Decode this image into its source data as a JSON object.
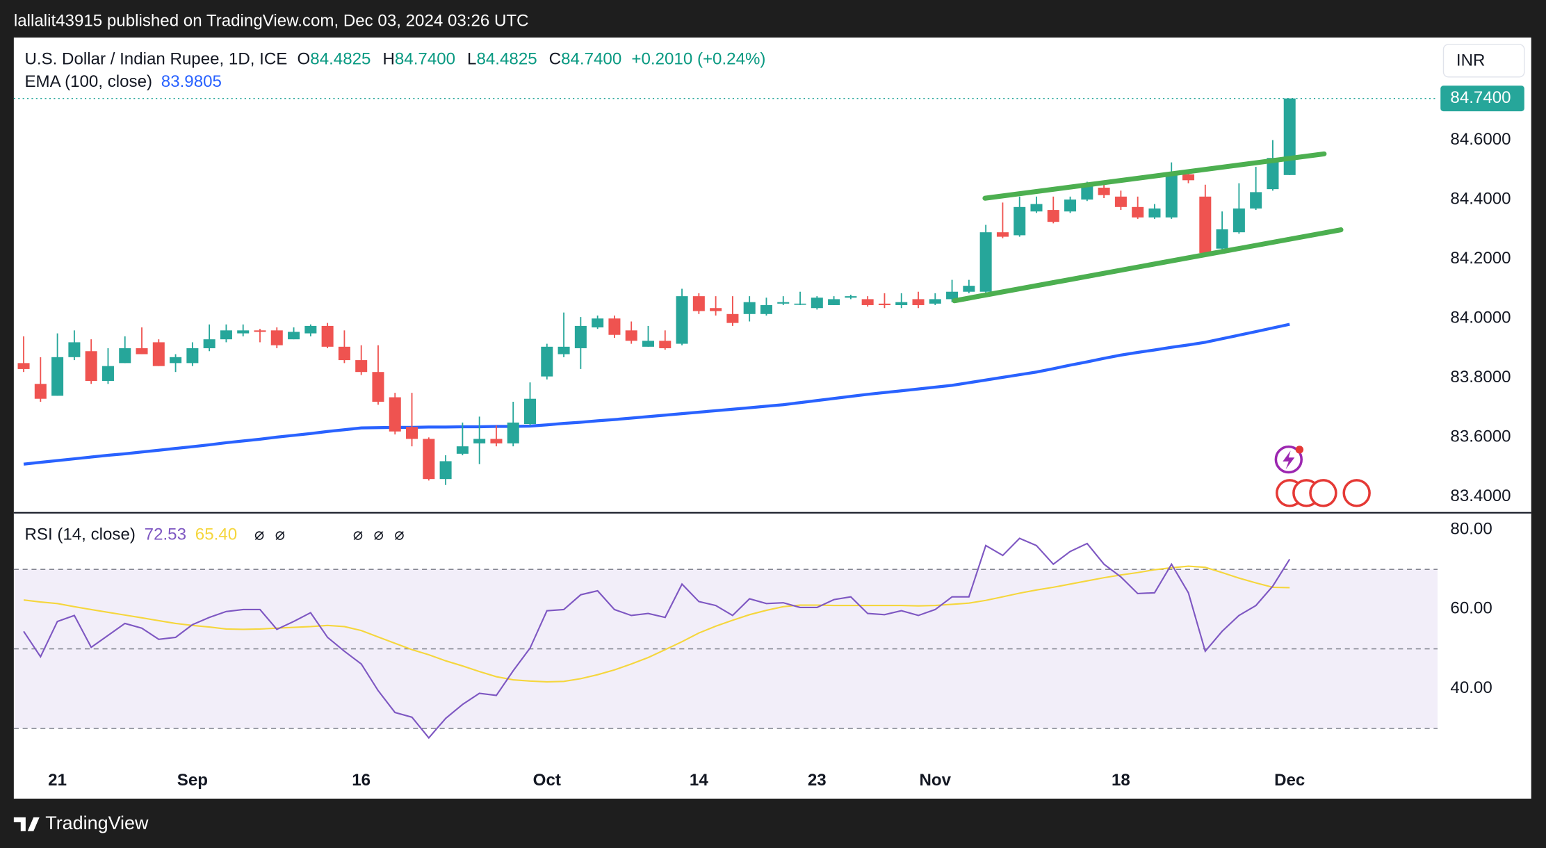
{
  "header": {
    "publisher": "lallalit43915 published on TradingView.com, Dec 03, 2024 03:26 UTC"
  },
  "chart_data": [
    {
      "type": "candlestick",
      "title": "U.S. Dollar / Indian Rupee, 1D, ICE",
      "legend": [
        {
          "key": "O",
          "text": "84.4825"
        },
        {
          "key": "H",
          "text": "84.7400"
        },
        {
          "key": "L",
          "text": "84.4825"
        },
        {
          "key": "C",
          "text": "84.7400"
        }
      ],
      "change": "+0.2010 (+0.24%)",
      "currency": "INR",
      "last_price_label": "84.7400",
      "up_color": "#26a69a",
      "down_color": "#ef5350",
      "categories": [
        null,
        null,
        "21",
        null,
        null,
        null,
        null,
        null,
        null,
        null,
        "Sep",
        null,
        null,
        null,
        null,
        null,
        null,
        null,
        null,
        null,
        "16",
        null,
        null,
        null,
        null,
        null,
        null,
        null,
        null,
        null,
        null,
        "Oct",
        null,
        null,
        null,
        null,
        null,
        null,
        null,
        null,
        "14",
        null,
        null,
        null,
        null,
        null,
        null,
        "23",
        null,
        null,
        null,
        null,
        null,
        null,
        "Nov",
        null,
        null,
        null,
        null,
        null,
        null,
        null,
        null,
        null,
        null,
        "18",
        null,
        null,
        null,
        null,
        null,
        null,
        null,
        null,
        null,
        "Dec"
      ],
      "open": [
        83.85,
        83.78,
        83.74,
        83.87,
        83.89,
        83.79,
        83.85,
        83.9,
        83.92,
        83.85,
        83.85,
        83.9,
        83.93,
        83.95,
        83.96,
        83.96,
        83.93,
        83.95,
        83.975,
        83.905,
        83.86,
        83.82,
        83.735,
        83.635,
        83.595,
        83.46,
        83.545,
        83.58,
        83.595,
        83.58,
        83.645,
        83.805,
        83.88,
        83.9,
        83.97,
        84.0,
        83.96,
        83.905,
        83.925,
        83.915,
        84.075,
        84.035,
        84.015,
        84.015,
        84.015,
        84.05,
        84.05,
        84.035,
        84.045,
        84.07,
        84.065,
        84.05,
        84.045,
        84.065,
        84.05,
        84.065,
        84.09,
        84.09,
        84.29,
        84.28,
        84.36,
        84.365,
        84.36,
        84.4,
        84.44,
        84.41,
        84.375,
        84.34,
        84.34,
        84.485,
        84.41,
        84.235,
        84.29,
        84.37,
        84.435,
        84.4825
      ],
      "high": [
        83.94,
        83.87,
        83.95,
        83.96,
        83.93,
        83.9,
        83.94,
        83.97,
        83.93,
        83.88,
        83.92,
        83.98,
        83.98,
        83.98,
        83.965,
        83.97,
        83.97,
        83.98,
        83.985,
        83.96,
        83.91,
        83.91,
        83.75,
        83.75,
        83.6,
        83.54,
        83.65,
        83.67,
        83.64,
        83.72,
        83.785,
        83.915,
        84.02,
        84.005,
        84.01,
        84.01,
        83.99,
        83.975,
        83.96,
        84.1,
        84.085,
        84.075,
        84.075,
        84.075,
        84.07,
        84.075,
        84.09,
        84.075,
        84.075,
        84.08,
        84.075,
        84.085,
        84.085,
        84.09,
        84.085,
        84.13,
        84.13,
        84.315,
        84.39,
        84.41,
        84.41,
        84.41,
        84.41,
        84.46,
        84.46,
        84.43,
        84.41,
        84.385,
        84.525,
        84.5,
        84.45,
        84.36,
        84.455,
        84.51,
        84.6,
        84.74
      ],
      "low": [
        83.82,
        83.72,
        83.74,
        83.86,
        83.78,
        83.78,
        83.85,
        83.88,
        83.84,
        83.82,
        83.84,
        83.89,
        83.92,
        83.94,
        83.92,
        83.9,
        83.93,
        83.94,
        83.9,
        83.85,
        83.81,
        83.71,
        83.61,
        83.57,
        83.455,
        83.44,
        83.54,
        83.51,
        83.57,
        83.57,
        83.64,
        83.795,
        83.87,
        83.83,
        83.965,
        83.935,
        83.915,
        83.905,
        83.895,
        83.91,
        84.015,
        84.01,
        83.975,
        83.99,
        84.01,
        84.045,
        84.045,
        84.03,
        84.045,
        84.065,
        84.04,
        84.035,
        84.035,
        84.035,
        84.045,
        84.055,
        84.085,
        84.085,
        84.27,
        84.275,
        84.355,
        84.32,
        84.355,
        84.395,
        84.405,
        84.365,
        84.335,
        84.335,
        84.335,
        84.455,
        84.21,
        84.225,
        84.285,
        84.365,
        84.43,
        84.4825
      ],
      "close": [
        83.83,
        83.73,
        83.87,
        83.92,
        83.79,
        83.84,
        83.9,
        83.88,
        83.84,
        83.87,
        83.9,
        83.93,
        83.96,
        83.96,
        83.955,
        83.91,
        83.955,
        83.975,
        83.905,
        83.86,
        83.82,
        83.72,
        83.62,
        83.595,
        83.46,
        83.52,
        83.57,
        83.595,
        83.58,
        83.65,
        83.73,
        83.905,
        83.905,
        83.975,
        84.0,
        83.945,
        83.925,
        83.925,
        83.9,
        84.075,
        84.025,
        84.025,
        83.985,
        84.055,
        84.045,
        84.055,
        84.05,
        84.07,
        84.065,
        84.075,
        84.045,
        84.045,
        84.055,
        84.045,
        84.065,
        84.09,
        84.11,
        84.29,
        84.275,
        84.375,
        84.385,
        84.325,
        84.4,
        84.45,
        84.415,
        84.375,
        84.34,
        84.37,
        84.485,
        84.465,
        84.22,
        84.3,
        84.37,
        84.425,
        84.54,
        84.74
      ],
      "series": [
        {
          "name": "EMA (100, close)",
          "color": "#2962ff",
          "values": [
            83.51,
            83.516,
            83.522,
            83.528,
            83.534,
            83.54,
            83.545,
            83.551,
            83.557,
            83.563,
            83.569,
            83.575,
            83.582,
            83.588,
            83.594,
            83.601,
            83.607,
            83.613,
            83.62,
            83.626,
            83.632,
            83.633,
            83.634,
            83.634,
            83.635,
            83.635,
            83.636,
            83.636,
            83.637,
            83.637,
            83.638,
            83.642,
            83.647,
            83.651,
            83.656,
            83.66,
            83.665,
            83.67,
            83.675,
            83.68,
            83.685,
            83.69,
            83.695,
            83.7,
            83.705,
            83.71,
            83.717,
            83.724,
            83.731,
            83.738,
            83.745,
            83.751,
            83.757,
            83.763,
            83.769,
            83.775,
            83.784,
            83.793,
            83.802,
            83.811,
            83.82,
            83.831,
            83.843,
            83.854,
            83.866,
            83.877,
            83.886,
            83.894,
            83.903,
            83.911,
            83.92,
            83.932,
            83.944,
            83.956,
            83.968,
            83.9805
          ]
        }
      ],
      "ylim": [
        83.35,
        84.945
      ],
      "yticks": [
        {
          "value": 83.4,
          "label": "83.4000"
        },
        {
          "value": 83.6,
          "label": "83.6000"
        },
        {
          "value": 83.8,
          "label": "83.8000"
        },
        {
          "value": 84.0,
          "label": "84.0000"
        },
        {
          "value": 84.2,
          "label": "84.2000"
        },
        {
          "value": 84.4,
          "label": "84.4000"
        },
        {
          "value": 84.6,
          "label": "84.6000"
        }
      ]
    },
    {
      "type": "line",
      "title": "RSI (14, close)",
      "markers": [
        "⌀ ⌀",
        "⌀ ⌀ ⌀"
      ],
      "series": [
        {
          "color": "#7e57c2",
          "value_label": "72.53",
          "values": [
            54.4,
            48.0,
            56.9,
            58.4,
            50.4,
            53.4,
            56.4,
            55.2,
            52.4,
            52.9,
            56.1,
            57.9,
            59.4,
            59.9,
            59.9,
            54.9,
            56.9,
            59.1,
            52.9,
            49.4,
            46.2,
            39.5,
            34.0,
            32.8,
            27.6,
            32.5,
            36.0,
            38.8,
            38.3,
            44.5,
            50.2,
            59.6,
            59.9,
            63.6,
            64.6,
            59.9,
            58.4,
            58.9,
            57.9,
            66.3,
            61.9,
            60.9,
            58.4,
            62.6,
            61.4,
            61.6,
            60.4,
            60.4,
            62.4,
            63.1,
            58.9,
            58.6,
            59.6,
            58.4,
            59.9,
            63.1,
            63.1,
            76.0,
            73.5,
            77.8,
            76.0,
            71.3,
            74.5,
            76.5,
            71.3,
            68.1,
            63.9,
            64.1,
            71.3,
            64.1,
            49.4,
            54.4,
            58.4,
            60.9,
            65.8,
            72.53
          ]
        },
        {
          "color": "#f5d63d",
          "value_label": "65.40",
          "values": [
            62.3,
            61.8,
            61.4,
            60.6,
            59.9,
            59.2,
            58.5,
            57.8,
            57.1,
            56.4,
            55.9,
            55.5,
            55.0,
            54.9,
            55.0,
            55.2,
            55.4,
            55.6,
            55.9,
            55.6,
            54.6,
            53.0,
            51.4,
            49.8,
            48.5,
            47.0,
            45.7,
            44.3,
            43.0,
            42.2,
            41.9,
            41.7,
            41.8,
            42.5,
            43.5,
            44.7,
            46.2,
            47.8,
            49.8,
            51.8,
            54.0,
            55.7,
            57.2,
            58.6,
            59.7,
            60.6,
            61.0,
            61.0,
            60.9,
            60.9,
            60.9,
            60.9,
            60.9,
            60.8,
            60.9,
            61.2,
            61.5,
            62.2,
            63.1,
            64.0,
            64.8,
            65.5,
            66.3,
            67.1,
            67.9,
            68.6,
            69.2,
            69.9,
            70.4,
            70.8,
            70.5,
            69.2,
            67.8,
            66.6,
            65.5,
            65.4
          ]
        }
      ],
      "levels": [
        30,
        50,
        70
      ],
      "ylim": [
        21,
        84
      ],
      "yticks": [
        {
          "value": 40,
          "label": "40.00"
        },
        {
          "value": 60,
          "label": "60.00"
        },
        {
          "value": 80,
          "label": "80.00"
        }
      ]
    }
  ],
  "footer": {
    "brand": "TradingView"
  }
}
